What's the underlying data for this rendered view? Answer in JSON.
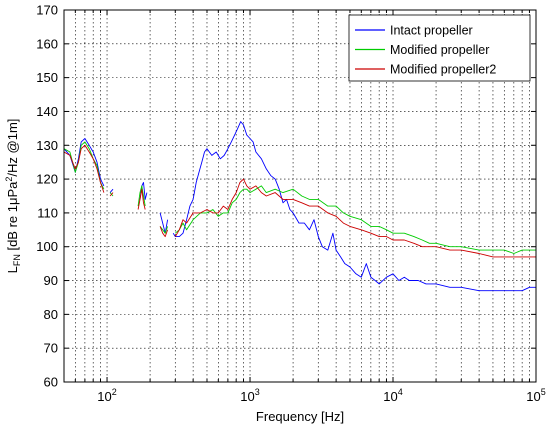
{
  "chart_data": {
    "type": "line",
    "xscale": "log",
    "xlim": [
      50,
      100000
    ],
    "ylim": [
      60,
      170
    ],
    "grid": true,
    "legend_position": "top-right",
    "xlabel": "Frequency [Hz]",
    "ylabel": {
      "main": "L",
      "main_sub": "FN",
      "rest_a": " [dB re 1",
      "mu": "μ",
      "rest_b": "Pa",
      "sup": "2",
      "rest_c": "/Hz @1m]"
    },
    "yticks": [
      60,
      70,
      80,
      90,
      100,
      110,
      120,
      130,
      140,
      150,
      160,
      170
    ],
    "xticks": [
      {
        "value": 100,
        "base": "10",
        "exp": "2"
      },
      {
        "value": 1000,
        "base": "10",
        "exp": "3"
      },
      {
        "value": 10000,
        "base": "10",
        "exp": "4"
      },
      {
        "value": 100000,
        "base": "10",
        "exp": "5"
      }
    ],
    "series": [
      {
        "name": "Intact propeller",
        "color": "#0000ff",
        "segments": [
          [
            [
              50,
              129
            ],
            [
              55,
              127
            ],
            [
              60,
              122
            ],
            [
              63,
              126
            ],
            [
              66,
              131
            ],
            [
              70,
              132
            ],
            [
              75,
              130
            ],
            [
              80,
              128
            ],
            [
              85,
              125
            ],
            [
              90,
              120
            ],
            [
              95,
              118
            ]
          ],
          [
            [
              105,
              116
            ],
            [
              110,
              117
            ]
          ],
          [
            [
              170,
              114
            ],
            [
              175,
              118
            ],
            [
              180,
              119
            ],
            [
              185,
              114
            ],
            [
              190,
              116
            ]
          ],
          [
            [
              235,
              110
            ],
            [
              245,
              107
            ],
            [
              255,
              104
            ],
            [
              265,
              108
            ]
          ],
          [
            [
              290,
              104
            ],
            [
              300,
              103
            ],
            [
              320,
              103
            ],
            [
              340,
              104
            ],
            [
              360,
              108
            ],
            [
              380,
              112
            ],
            [
              400,
              114
            ],
            [
              420,
              119
            ],
            [
              440,
              122
            ],
            [
              460,
              125
            ],
            [
              480,
              128
            ],
            [
              500,
              129
            ],
            [
              540,
              127
            ],
            [
              580,
              128
            ],
            [
              620,
              126
            ],
            [
              660,
              127
            ],
            [
              700,
              129
            ],
            [
              740,
              131
            ],
            [
              780,
              133
            ],
            [
              820,
              135
            ],
            [
              860,
              137
            ],
            [
              900,
              136
            ],
            [
              950,
              133
            ],
            [
              1000,
              132
            ],
            [
              1050,
              131
            ],
            [
              1100,
              128
            ],
            [
              1200,
              126
            ],
            [
              1300,
              123
            ],
            [
              1400,
              121
            ],
            [
              1500,
              120
            ],
            [
              1600,
              117
            ],
            [
              1700,
              113
            ],
            [
              1800,
              114
            ],
            [
              1900,
              111
            ],
            [
              2000,
              110
            ],
            [
              2200,
              107
            ],
            [
              2400,
              107
            ],
            [
              2600,
              105
            ],
            [
              2800,
              108
            ],
            [
              3000,
              103
            ],
            [
              3200,
              100
            ],
            [
              3500,
              99
            ],
            [
              3800,
              104
            ],
            [
              4000,
              99
            ],
            [
              4300,
              97
            ],
            [
              4600,
              95
            ],
            [
              5000,
              94
            ],
            [
              5500,
              92
            ],
            [
              6000,
              91
            ],
            [
              6500,
              95
            ],
            [
              7000,
              91
            ],
            [
              7500,
              90
            ],
            [
              8000,
              89
            ],
            [
              9000,
              91
            ],
            [
              10000,
              92
            ],
            [
              11000,
              90
            ],
            [
              12000,
              91
            ],
            [
              13000,
              90
            ],
            [
              15000,
              90
            ],
            [
              17000,
              89
            ],
            [
              20000,
              89
            ],
            [
              25000,
              88
            ],
            [
              30000,
              88
            ],
            [
              40000,
              87
            ],
            [
              50000,
              87
            ],
            [
              60000,
              87
            ],
            [
              70000,
              87
            ],
            [
              80000,
              87
            ],
            [
              90000,
              88
            ],
            [
              100000,
              88
            ]
          ]
        ]
      },
      {
        "name": "Modified propeller",
        "color": "#00cc00",
        "segments": [
          [
            [
              50,
              129
            ],
            [
              55,
              128
            ],
            [
              60,
              122
            ],
            [
              63,
              125
            ],
            [
              66,
              130
            ],
            [
              70,
              131
            ],
            [
              75,
              129
            ],
            [
              80,
              126
            ],
            [
              85,
              124
            ],
            [
              90,
              119
            ],
            [
              95,
              117
            ]
          ],
          [
            [
              105,
              116
            ],
            [
              110,
              115
            ]
          ],
          [
            [
              165,
              112
            ],
            [
              170,
              116
            ],
            [
              175,
              118
            ],
            [
              180,
              115
            ],
            [
              185,
              112
            ]
          ],
          [
            [
              235,
              106
            ],
            [
              245,
              105
            ],
            [
              255,
              104
            ],
            [
              265,
              106
            ]
          ],
          [
            [
              300,
              104
            ],
            [
              320,
              105
            ],
            [
              340,
              107
            ],
            [
              360,
              105
            ],
            [
              400,
              108
            ],
            [
              450,
              110
            ],
            [
              500,
              110
            ],
            [
              550,
              111
            ],
            [
              600,
              109
            ],
            [
              650,
              110
            ],
            [
              700,
              110
            ],
            [
              750,
              113
            ],
            [
              800,
              114
            ],
            [
              850,
              116
            ],
            [
              900,
              117
            ],
            [
              950,
              117
            ],
            [
              1000,
              116
            ],
            [
              1100,
              117
            ],
            [
              1200,
              118
            ],
            [
              1300,
              116
            ],
            [
              1500,
              117
            ],
            [
              1700,
              116
            ],
            [
              2000,
              117
            ],
            [
              2300,
              115
            ],
            [
              2600,
              114
            ],
            [
              3000,
              114
            ],
            [
              3500,
              112
            ],
            [
              4000,
              112
            ],
            [
              4500,
              110
            ],
            [
              5000,
              109
            ],
            [
              6000,
              108
            ],
            [
              7000,
              106
            ],
            [
              8000,
              106
            ],
            [
              9000,
              105
            ],
            [
              10000,
              104
            ],
            [
              12000,
              104
            ],
            [
              14000,
              103
            ],
            [
              16000,
              102
            ],
            [
              18000,
              101
            ],
            [
              20000,
              101
            ],
            [
              25000,
              100
            ],
            [
              30000,
              100
            ],
            [
              40000,
              99
            ],
            [
              50000,
              99
            ],
            [
              60000,
              99
            ],
            [
              70000,
              98
            ],
            [
              80000,
              99
            ],
            [
              90000,
              99
            ],
            [
              100000,
              99
            ]
          ]
        ]
      },
      {
        "name": "Modified propeller2",
        "color": "#cc0000",
        "segments": [
          [
            [
              50,
              128
            ],
            [
              55,
              127
            ],
            [
              60,
              123
            ],
            [
              63,
              125
            ],
            [
              66,
              129
            ],
            [
              70,
              130
            ],
            [
              75,
              128
            ],
            [
              80,
              126
            ],
            [
              85,
              123
            ],
            [
              90,
              119
            ],
            [
              95,
              116
            ]
          ],
          [
            [
              105,
              115
            ],
            [
              110,
              116
            ]
          ],
          [
            [
              165,
              111
            ],
            [
              170,
              114
            ],
            [
              175,
              117
            ],
            [
              180,
              113
            ],
            [
              185,
              111
            ]
          ],
          [
            [
              235,
              106
            ],
            [
              245,
              104
            ],
            [
              255,
              103
            ],
            [
              265,
              105
            ]
          ],
          [
            [
              300,
              103
            ],
            [
              320,
              105
            ],
            [
              340,
              108
            ],
            [
              360,
              107
            ],
            [
              400,
              110
            ],
            [
              450,
              110
            ],
            [
              500,
              111
            ],
            [
              550,
              110
            ],
            [
              600,
              110
            ],
            [
              650,
              112
            ],
            [
              700,
              111
            ],
            [
              750,
              114
            ],
            [
              800,
              116
            ],
            [
              850,
              119
            ],
            [
              900,
              120
            ],
            [
              950,
              118
            ],
            [
              1000,
              117
            ],
            [
              1100,
              118
            ],
            [
              1200,
              116
            ],
            [
              1300,
              115
            ],
            [
              1500,
              116
            ],
            [
              1700,
              114
            ],
            [
              2000,
              114
            ],
            [
              2300,
              113
            ],
            [
              2600,
              112
            ],
            [
              3000,
              112
            ],
            [
              3500,
              110
            ],
            [
              4000,
              109
            ],
            [
              4500,
              107
            ],
            [
              5000,
              106
            ],
            [
              6000,
              105
            ],
            [
              7000,
              104
            ],
            [
              8000,
              103
            ],
            [
              9000,
              103
            ],
            [
              10000,
              102
            ],
            [
              12000,
              102
            ],
            [
              14000,
              101
            ],
            [
              16000,
              100
            ],
            [
              18000,
              100
            ],
            [
              20000,
              100
            ],
            [
              25000,
              99
            ],
            [
              30000,
              99
            ],
            [
              40000,
              98
            ],
            [
              50000,
              97
            ],
            [
              60000,
              97
            ],
            [
              70000,
              97
            ],
            [
              80000,
              97
            ],
            [
              90000,
              97
            ],
            [
              100000,
              97
            ]
          ]
        ]
      }
    ]
  }
}
